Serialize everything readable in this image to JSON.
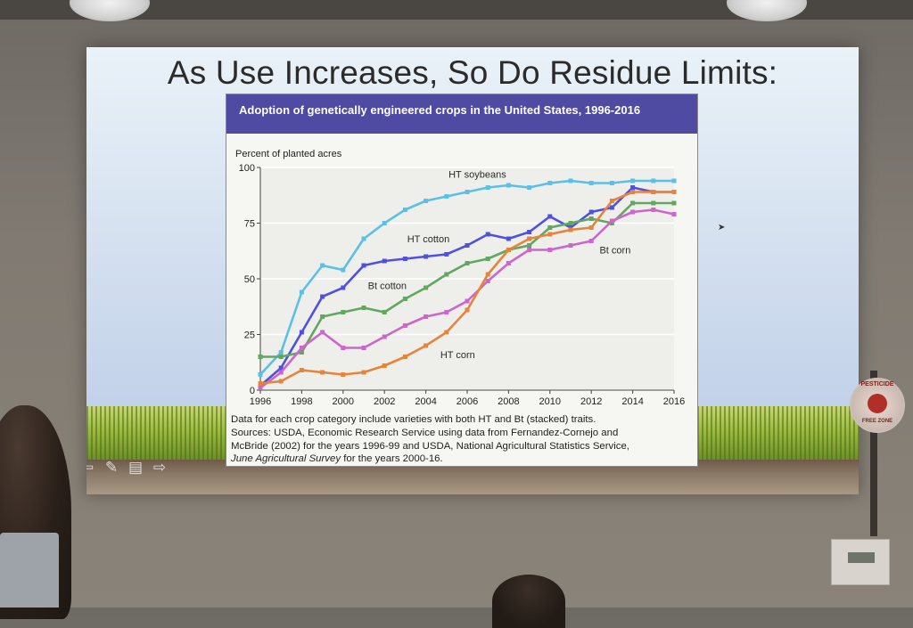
{
  "slide": {
    "title": "As Use Increases, So Do Residue Limits:",
    "nav_icons": [
      "arrow-left-icon",
      "pen-icon",
      "menu-icon",
      "arrow-right-icon"
    ]
  },
  "figure": {
    "title": "Adoption of genetically engineered crops in the United States, 1996-2016",
    "notes": [
      "Data for each crop category include varieties with both HT and Bt (stacked) traits.",
      "Sources: USDA, Economic Research Service using data from Fernandez-Cornejo and",
      "McBride (2002) for the years 1996-99 and USDA, National Agricultural Statistics Service,"
    ],
    "notes_italic": "June Agricultural Survey",
    "notes_tail": " for the years 2000-16."
  },
  "sign": {
    "top_text": "PESTICIDE",
    "bottom_text": "FREE ZONE"
  },
  "chart_data": {
    "type": "line",
    "title": "Adoption of genetically engineered crops in the United States, 1996-2016",
    "ylabel": "Percent of planted acres",
    "xlabel": "",
    "x": [
      1996,
      1997,
      1998,
      1999,
      2000,
      2001,
      2002,
      2003,
      2004,
      2005,
      2006,
      2007,
      2008,
      2009,
      2010,
      2011,
      2012,
      2013,
      2014,
      2015,
      2016
    ],
    "xticks": [
      1996,
      1998,
      2000,
      2002,
      2004,
      2006,
      2008,
      2010,
      2012,
      2014,
      2016
    ],
    "yticks": [
      0,
      25,
      50,
      75,
      100
    ],
    "ylim": [
      0,
      100
    ],
    "xlim": [
      1996,
      2016
    ],
    "grid": true,
    "legend": "inline labels",
    "series": [
      {
        "name": "HT soybeans",
        "color": "#5bc0e8",
        "values": [
          7,
          17,
          44,
          56,
          54,
          68,
          75,
          81,
          85,
          87,
          89,
          91,
          92,
          91,
          93,
          94,
          93,
          93,
          94,
          94,
          94
        ]
      },
      {
        "name": "HT cotton",
        "color": "#5050e0",
        "values": [
          2,
          10,
          26,
          42,
          46,
          56,
          58,
          59,
          60,
          61,
          65,
          70,
          68,
          71,
          78,
          73,
          80,
          82,
          91,
          89,
          89
        ]
      },
      {
        "name": "Bt cotton",
        "color": "#60a860",
        "values": [
          15,
          15,
          17,
          33,
          35,
          37,
          35,
          41,
          46,
          52,
          57,
          59,
          63,
          65,
          73,
          75,
          77,
          75,
          84,
          84,
          84
        ]
      },
      {
        "name": "Bt corn",
        "color": "#cc66cc",
        "values": [
          1,
          8,
          19,
          26,
          19,
          19,
          24,
          29,
          33,
          35,
          40,
          49,
          57,
          63,
          63,
          65,
          67,
          76,
          80,
          81,
          79
        ]
      },
      {
        "name": "HT corn",
        "color": "#e8843a",
        "values": [
          3,
          4,
          9,
          8,
          7,
          8,
          11,
          15,
          20,
          26,
          36,
          52,
          63,
          68,
          70,
          72,
          73,
          85,
          89,
          89,
          89
        ]
      }
    ],
    "labels": [
      {
        "text": "HT soybeans",
        "x": 2005.1,
        "y": 95.5
      },
      {
        "text": "HT cotton",
        "x": 2003.1,
        "y": 66.5
      },
      {
        "text": "Bt corn",
        "x": 2012.4,
        "y": 61.5
      },
      {
        "text": "Bt cotton",
        "x": 2001.2,
        "y": 45.5
      },
      {
        "text": "HT corn",
        "x": 2004.7,
        "y": 14.5
      }
    ]
  }
}
